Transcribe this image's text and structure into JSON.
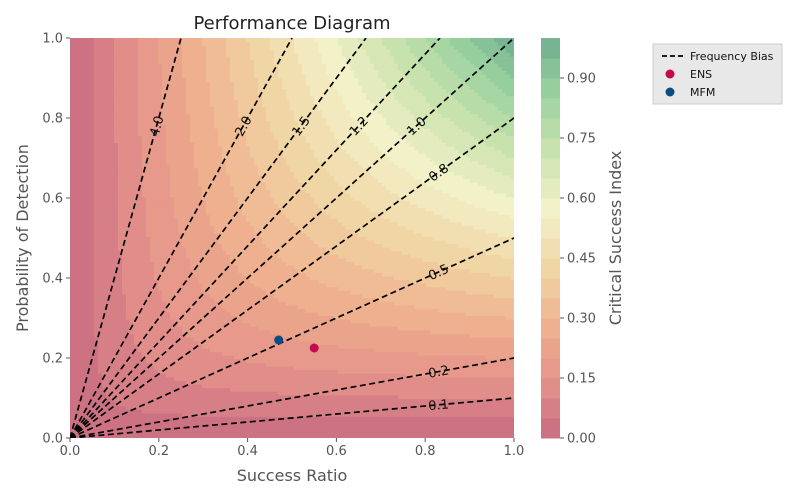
{
  "chart_data": {
    "type": "performance-diagram",
    "title": "Performance Diagram",
    "xlabel": "Success Ratio",
    "ylabel": "Probability of Detection",
    "xlim": [
      0.0,
      1.0
    ],
    "ylim": [
      0.0,
      1.0
    ],
    "xticks": [
      "0.0",
      "0.2",
      "0.4",
      "0.6",
      "0.8",
      "1.0"
    ],
    "yticks": [
      "0.0",
      "0.2",
      "0.4",
      "0.6",
      "0.8",
      "1.0"
    ],
    "grid": false,
    "background": "filled CSI contours",
    "colorbar": {
      "label": "Critical Success Index",
      "range": [
        0.0,
        1.0
      ],
      "levels": 20,
      "ticks": [
        "0.00",
        "0.15",
        "0.30",
        "0.45",
        "0.60",
        "0.75",
        "0.90"
      ],
      "tick_values": [
        0.0,
        0.15,
        0.3,
        0.45,
        0.6,
        0.75,
        0.9
      ],
      "colormap_stops": [
        "#c76b81",
        "#e5928a",
        "#efb28e",
        "#f1d7a6",
        "#f3f1c9",
        "#cbe3ae",
        "#9bd2a0",
        "#6fae8f"
      ]
    },
    "frequency_bias_lines": [
      {
        "label": "4.0",
        "value": 4.0
      },
      {
        "label": "2.0",
        "value": 2.0
      },
      {
        "label": "1.5",
        "value": 1.5
      },
      {
        "label": "1.2",
        "value": 1.2
      },
      {
        "label": "1.0",
        "value": 1.0
      },
      {
        "label": "0.8",
        "value": 0.8
      },
      {
        "label": "0.5",
        "value": 0.5
      },
      {
        "label": "0.2",
        "value": 0.2
      },
      {
        "label": "0.1",
        "value": 0.1
      }
    ],
    "series": [
      {
        "name": "ENS",
        "color": "#c4094e",
        "points": [
          [
            0.55,
            0.225
          ]
        ]
      },
      {
        "name": "MFM",
        "color": "#0b4d82",
        "points": [
          [
            0.47,
            0.245
          ]
        ]
      }
    ],
    "legend": {
      "placement": "upper-right-outside",
      "entries": [
        {
          "label": "Frequency Bias",
          "marker": "dashed-line",
          "color": "#000000"
        },
        {
          "label": "ENS",
          "marker": "dot",
          "color": "#c4094e"
        },
        {
          "label": "MFM",
          "marker": "dot",
          "color": "#0b4d82"
        }
      ]
    }
  }
}
